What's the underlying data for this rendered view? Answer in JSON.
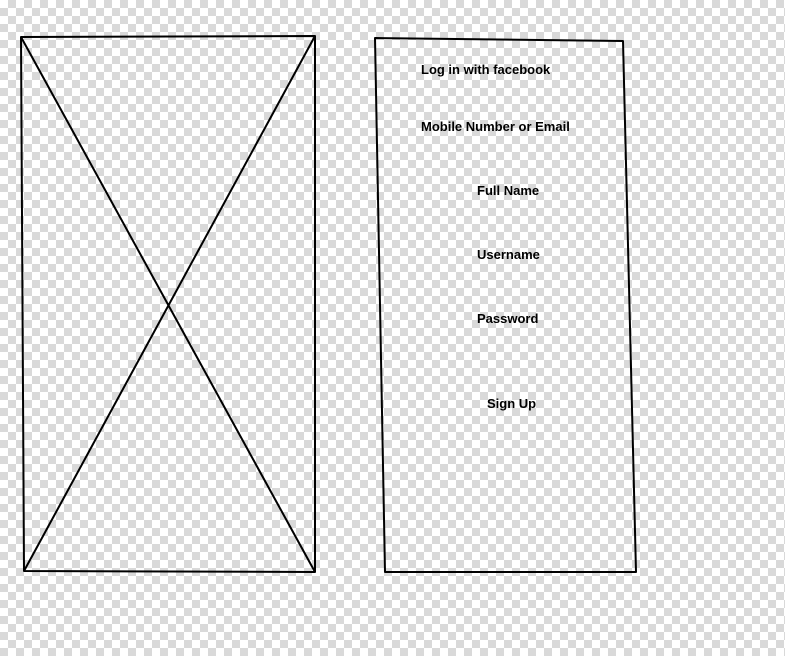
{
  "image_placeholder": {
    "icon": "image-placeholder-icon"
  },
  "signup_form": {
    "facebook_login": "Log in with facebook",
    "mobile_or_email": "Mobile Number or Email",
    "full_name": "Full Name",
    "username": "Username",
    "password": "Password",
    "sign_up": "Sign Up"
  },
  "colors": {
    "stroke": "#000000",
    "checker_light": "#ffffff",
    "checker_dark": "#d9d9d9"
  }
}
